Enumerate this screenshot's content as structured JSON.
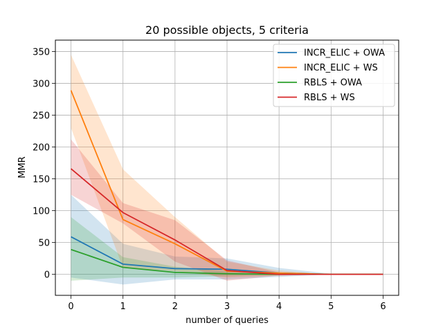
{
  "chart_data": {
    "type": "line",
    "title": "20 possible objects, 5 criteria",
    "xlabel": "number of queries",
    "ylabel": "MMR",
    "x": [
      0,
      1,
      2,
      3,
      4,
      5,
      6
    ],
    "xlim": [
      -0.3,
      6.3
    ],
    "ylim": [
      -33,
      368
    ],
    "xticks": [
      0,
      1,
      2,
      3,
      4,
      5,
      6
    ],
    "yticks": [
      0,
      50,
      100,
      150,
      200,
      250,
      300,
      350
    ],
    "grid": true,
    "legend_position": "top-right",
    "series": [
      {
        "name": "INCR_ELIC + OWA",
        "color": "#1f77b4",
        "values": [
          59,
          16,
          9,
          8,
          2,
          0,
          0
        ],
        "lower": [
          -5,
          -16,
          -8,
          -8,
          -4,
          0,
          0
        ],
        "upper": [
          125,
          48,
          28,
          25,
          10,
          1,
          0
        ]
      },
      {
        "name": "INCR_ELIC + WS",
        "color": "#ff7f0e",
        "values": [
          289,
          86,
          48,
          5,
          2,
          0,
          0
        ],
        "lower": [
          230,
          10,
          5,
          -5,
          -2,
          0,
          0
        ],
        "upper": [
          345,
          165,
          90,
          20,
          6,
          0,
          0
        ]
      },
      {
        "name": "RBLS + OWA",
        "color": "#2ca02c",
        "values": [
          39,
          11,
          3,
          1,
          0,
          0,
          0
        ],
        "lower": [
          -10,
          -5,
          -5,
          -3,
          -1,
          0,
          0
        ],
        "upper": [
          90,
          27,
          12,
          5,
          2,
          0,
          0
        ]
      },
      {
        "name": "RBLS + WS",
        "color": "#d62728",
        "values": [
          166,
          97,
          54,
          6,
          0,
          0,
          0
        ],
        "lower": [
          125,
          80,
          20,
          -10,
          -2,
          0,
          0
        ],
        "upper": [
          212,
          112,
          85,
          22,
          3,
          0,
          0
        ]
      }
    ]
  }
}
